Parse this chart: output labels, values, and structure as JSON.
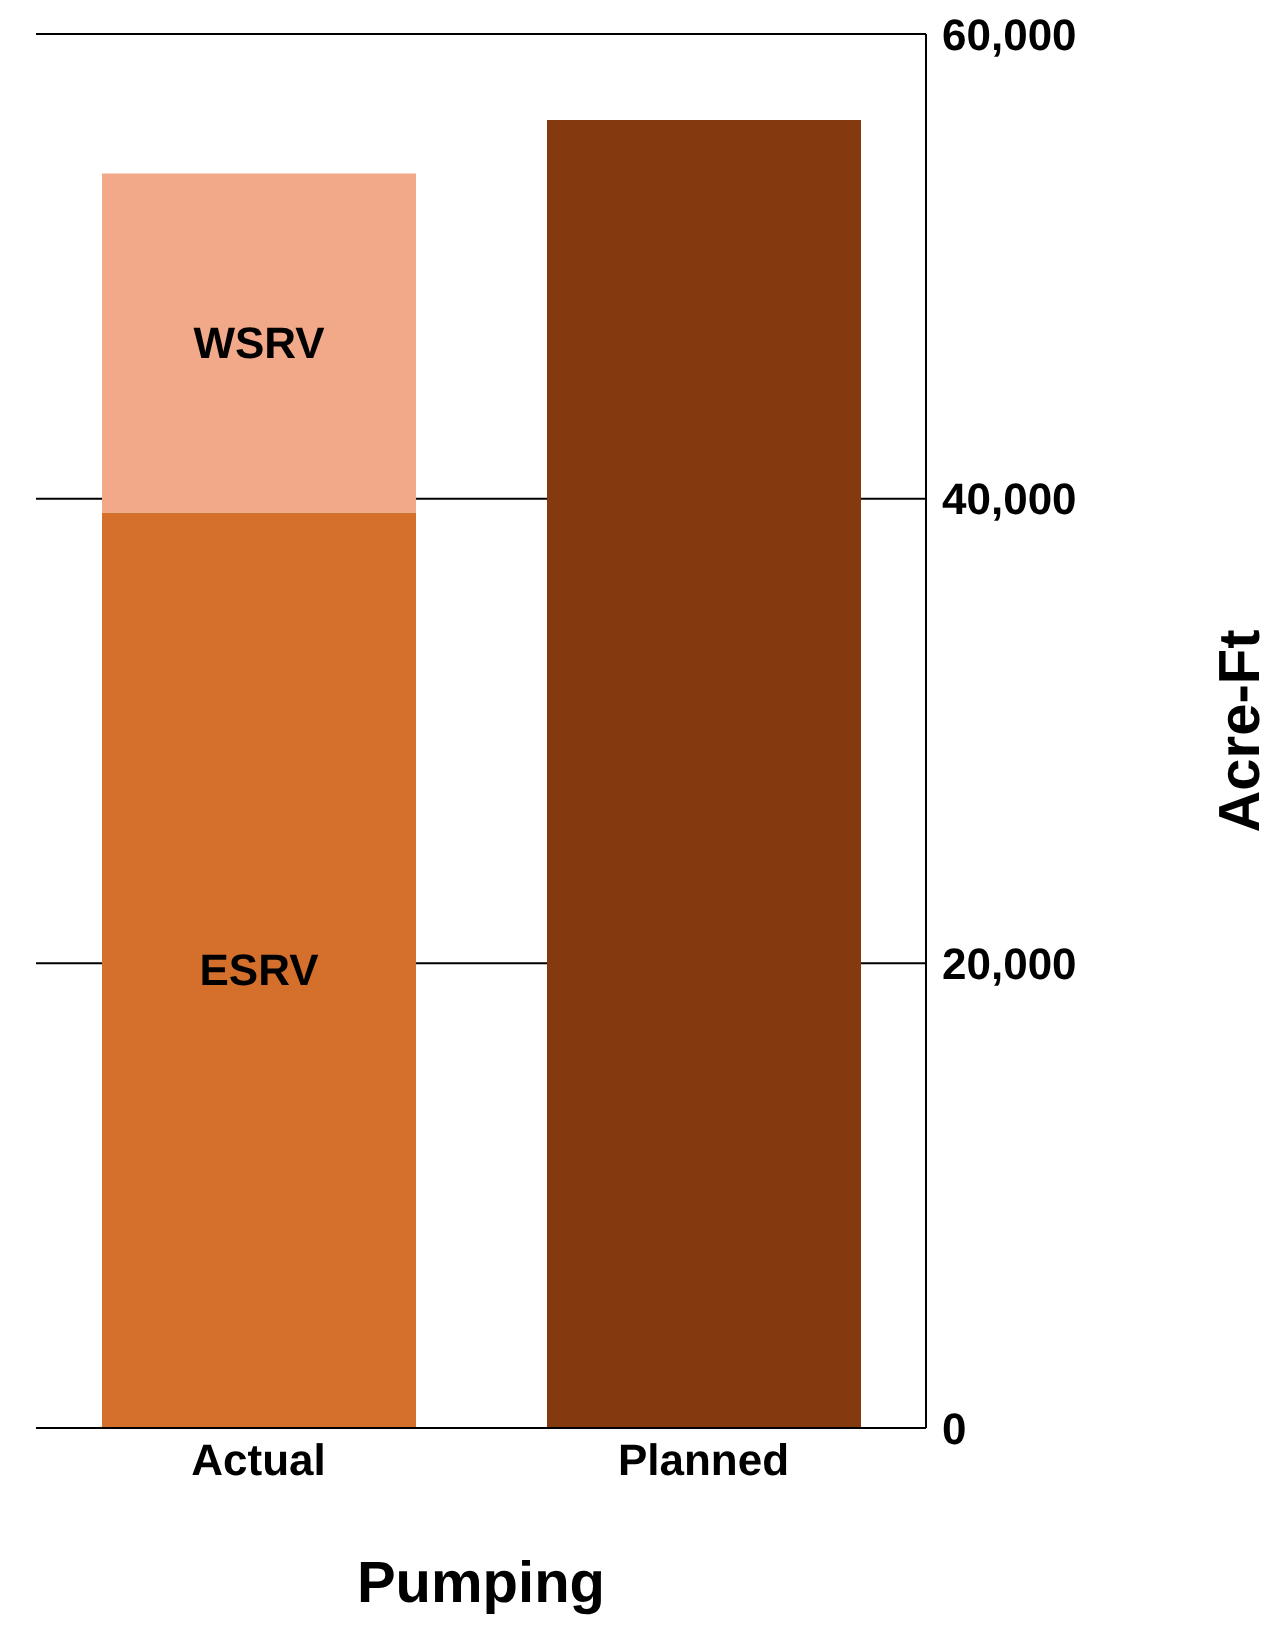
{
  "chart_data": {
    "type": "bar",
    "stacked": true,
    "categories": [
      "Actual",
      "Planned"
    ],
    "series": [
      {
        "name": "ESRV",
        "color": "#d4702c",
        "values": [
          39400,
          null
        ]
      },
      {
        "name": "WSRV",
        "color": "#f2a98a",
        "values": [
          14600,
          null
        ]
      },
      {
        "color": "#843a0e",
        "values": [
          null,
          56300
        ]
      }
    ],
    "xlabel": "Pumping",
    "ylabel": "Acre-Ft",
    "ylim": [
      0,
      60000
    ],
    "yticks": [
      0,
      {
        "value": 20000,
        "label": "20,000"
      },
      {
        "value": 40000,
        "label": "40,000"
      },
      {
        "value": 60000,
        "label": "60,000"
      }
    ],
    "grid": "y",
    "legend": false
  }
}
